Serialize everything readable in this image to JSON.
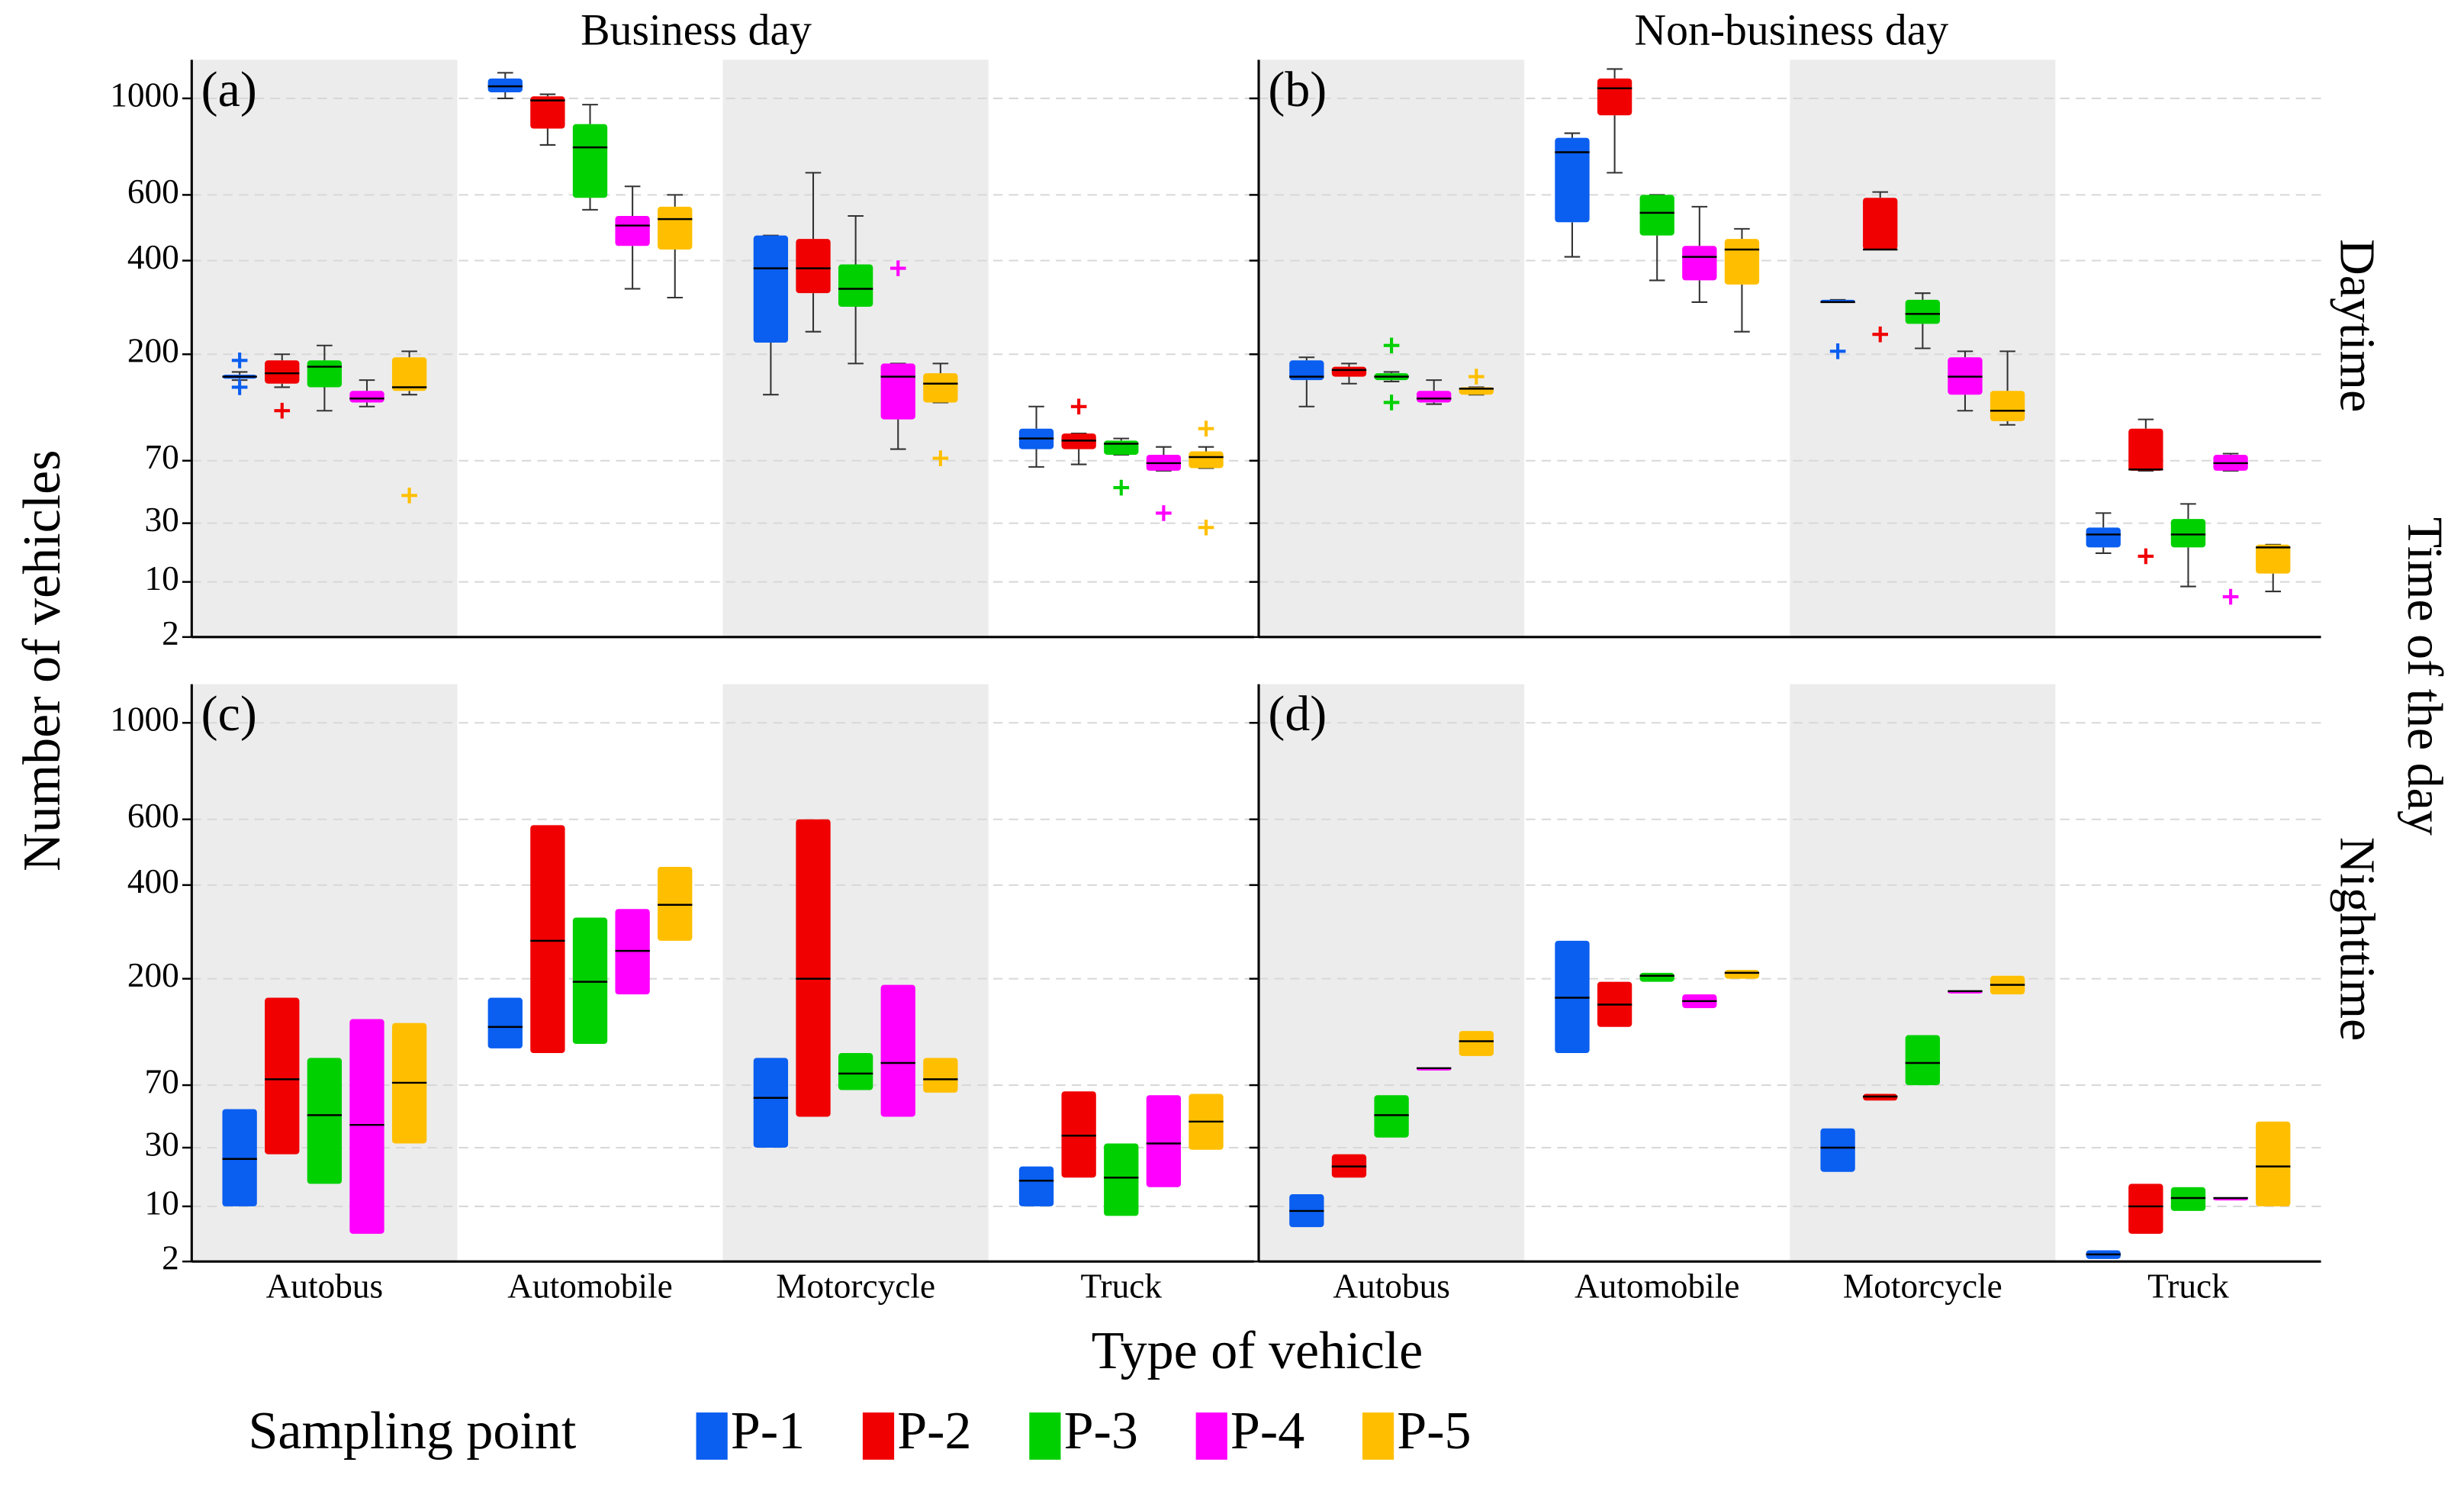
{
  "column_titles": [
    "Business day",
    "Non-business day"
  ],
  "row_titles": [
    "Daytime",
    "Nighttime"
  ],
  "facet_title": "Time of the day",
  "y_label": "Number of vehicles",
  "x_label": "Type of vehicle",
  "legend": {
    "title": "Sampling point",
    "names": [
      "P-1",
      "P-2",
      "P-3",
      "P-4",
      "P-5"
    ],
    "colors": [
      "#0a5ef0",
      "#f00000",
      "#00d000",
      "#ff00ff",
      "#ffbf00"
    ]
  },
  "chart_data": [
    {
      "type": "box",
      "label": "(a)",
      "yscale": "cbrt",
      "ylim": [
        2,
        1200
      ],
      "yticks": [
        2,
        10,
        30,
        70,
        200,
        400,
        600,
        1000
      ],
      "grid": true,
      "series": [
        {
          "values": [
            [
              160,
              162,
              165,
              168,
              172
            ],
            [
              1000,
              1030,
              1060,
              1100,
              1130
            ],
            [
              140,
              220,
              380,
              470,
              470
            ],
            [
              65,
              80,
              90,
              100,
              125
            ]
          ],
          "outliers": [
            [
              190,
              150
            ],
            [],
            [],
            []
          ]
        },
        {
          "values": [
            [
              150,
              155,
              170,
              190,
              200
            ],
            [
              790,
              860,
              990,
              1010,
              1020
            ],
            [
              240,
              320,
              380,
              460,
              680
            ],
            [
              67,
              80,
              88,
              95,
              95
            ]
          ],
          "outliers": [
            [
              120
            ],
            [],
            [],
            [
              125
            ]
          ]
        },
        {
          "values": [
            [
              120,
              150,
              180,
              190,
              215
            ],
            [
              550,
              590,
              780,
              880,
              970
            ],
            [
              185,
              290,
              330,
              390,
              530
            ],
            [
              75,
              75,
              85,
              88,
              90
            ]
          ],
          "outliers": [
            [],
            [],
            [],
            [
              50
            ]
          ]
        },
        {
          "values": [
            [
              125,
              130,
              135,
              145,
              160
            ],
            [
              330,
              440,
              500,
              530,
              630
            ],
            [
              80,
              110,
              165,
              185,
              185
            ],
            [
              62,
              62,
              68,
              75,
              82
            ]
          ],
          "outliers": [
            [],
            [],
            [
              380
            ],
            [
              35
            ]
          ]
        },
        {
          "values": [
            [
              140,
              145,
              150,
              195,
              205
            ],
            [
              310,
              430,
              520,
              560,
              600
            ],
            [
              130,
              130,
              155,
              170,
              185
            ],
            [
              64,
              64,
              73,
              78,
              82
            ]
          ],
          "outliers": [
            [
              45
            ],
            [],
            [
              72
            ],
            [
              100,
              28
            ]
          ]
        }
      ]
    },
    {
      "type": "box",
      "label": "(b)",
      "yscale": "cbrt",
      "ylim": [
        2,
        1200
      ],
      "yticks": [
        2,
        10,
        30,
        70,
        200,
        400,
        600,
        1000
      ],
      "grid": true,
      "series": [
        {
          "values": [
            [
              125,
              160,
              165,
              190,
              195
            ],
            [
              410,
              510,
              760,
              820,
              840
            ],
            [
              300,
              300,
              300,
              305,
              305
            ],
            [
              18,
              20,
              25,
              28,
              35
            ]
          ],
          "outliers": [
            [],
            [],
            [
              205
            ],
            []
          ]
        },
        {
          "values": [
            [
              155,
              165,
              175,
              180,
              185
            ],
            [
              680,
              920,
              1050,
              1100,
              1150
            ],
            [
              430,
              430,
              430,
              590,
              610
            ],
            [
              62,
              62,
              63,
              100,
              110
            ]
          ],
          "outliers": [
            [],
            [],
            [
              235
            ],
            [
              17
            ]
          ]
        },
        {
          "values": [
            [
              158,
              160,
              165,
              170,
              172
            ],
            [
              350,
              470,
              540,
              600,
              600
            ],
            [
              210,
              255,
              275,
              305,
              320
            ],
            [
              9,
              20,
              25,
              32,
              40
            ]
          ],
          "outliers": [
            [
              215,
              130
            ],
            [],
            [],
            []
          ]
        },
        {
          "values": [
            [
              128,
              130,
              135,
              145,
              160
            ],
            [
              300,
              350,
              410,
              440,
              560
            ],
            [
              120,
              140,
              165,
              195,
              205
            ],
            [
              62,
              62,
              68,
              75,
              76
            ]
          ],
          "outliers": [
            [],
            [],
            [],
            [
              7
            ]
          ]
        },
        {
          "values": [
            [
              140,
              140,
              148,
              150,
              150
            ],
            [
              240,
              340,
              430,
              460,
              490
            ],
            [
              104,
              108,
              120,
              145,
              205
            ],
            [
              8,
              12,
              20,
              21,
              21
            ]
          ],
          "outliers": [
            [
              165
            ],
            [],
            [],
            []
          ]
        }
      ]
    },
    {
      "type": "box",
      "label": "(c)",
      "yscale": "cbrt",
      "ylim": [
        2,
        1200
      ],
      "yticks": [
        2,
        10,
        30,
        70,
        200,
        400,
        600,
        1000
      ],
      "grid": true,
      "categories": [
        "Autobus",
        "Automobile",
        "Motorcycle",
        "Truck"
      ],
      "series": [
        {
          "values": [
            [
              10,
              25,
              52
            ],
            [
              105,
              130,
              170
            ],
            [
              30,
              60,
              95
            ],
            [
              10,
              17,
              22
            ]
          ]
        },
        {
          "values": [
            [
              27,
              75,
              170
            ],
            [
              100,
              270,
              580
            ],
            [
              47,
              200,
              600
            ],
            [
              18,
              36,
              65
            ]
          ]
        },
        {
          "values": [
            [
              16,
              48,
              95
            ],
            [
              110,
              195,
              320
            ],
            [
              66,
              80,
              100
            ],
            [
              8,
              18,
              32
            ]
          ]
        },
        {
          "values": [
            [
              5,
              42,
              140
            ],
            [
              175,
              250,
              340
            ],
            [
              47,
              90,
              190
            ],
            [
              15,
              32,
              62
            ]
          ]
        },
        {
          "values": [
            [
              32,
              72,
              135
            ],
            [
              270,
              350,
              450
            ],
            [
              64,
              75,
              95
            ],
            [
              29,
              44,
              63
            ]
          ]
        }
      ]
    },
    {
      "type": "box",
      "label": "(d)",
      "yscale": "cbrt",
      "ylim": [
        2,
        1200
      ],
      "yticks": [
        2,
        10,
        30,
        70,
        200,
        400,
        600,
        1000
      ],
      "grid": true,
      "categories": [
        "Autobus",
        "Automobile",
        "Motorcycle",
        "Truck"
      ],
      "series": [
        {
          "values": [
            [
              6,
              9,
              13
            ],
            [
              100,
              170,
              270
            ],
            [
              20,
              30,
              40
            ],
            [
              2.2,
              2.6,
              3
            ]
          ]
        },
        {
          "values": [
            [
              18,
              22,
              27
            ],
            [
              130,
              160,
              195
            ],
            [
              58,
              61,
              63
            ],
            [
              5,
              10,
              16
            ]
          ]
        },
        {
          "values": [
            [
              35,
              48,
              62
            ],
            [
              195,
              205,
              210
            ],
            [
              70,
              90,
              120
            ],
            [
              9,
              12,
              15
            ]
          ]
        },
        {
          "values": [
            [
              85,
              85,
              85
            ],
            [
              155,
              165,
              175
            ],
            [
              180,
              180,
              180
            ],
            [
              12,
              12,
              12
            ]
          ]
        },
        {
          "values": [
            [
              97,
              113,
              125
            ],
            [
              200,
              210,
              215
            ],
            [
              175,
              190,
              205
            ],
            [
              10,
              22,
              44
            ]
          ]
        }
      ]
    }
  ]
}
